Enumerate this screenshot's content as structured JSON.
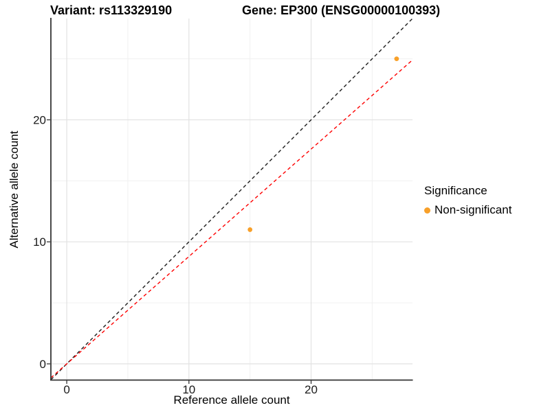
{
  "chart_data": {
    "type": "scatter",
    "titles": {
      "variant": "Variant: rs113329190",
      "gene": "Gene: EP300 (ENSG00000100393)"
    },
    "xlabel": "Reference allele count",
    "ylabel": "Alternative allele count",
    "xlim": [
      -1.3,
      28.3
    ],
    "ylim": [
      -1.3,
      28.3
    ],
    "x_major_ticks": [
      0,
      10,
      20
    ],
    "x_minor_ticks": [
      5,
      15,
      25
    ],
    "y_major_ticks": [
      0,
      10,
      20
    ],
    "y_minor_ticks": [
      5,
      15,
      25
    ],
    "grid": true,
    "points": [
      {
        "x": 15,
        "y": 11,
        "series": "Non-significant"
      },
      {
        "x": 27,
        "y": 25,
        "series": "Non-significant"
      }
    ],
    "lines": [
      {
        "name": "identity-line",
        "slope": 1.0,
        "intercept": 0,
        "color": "#1a1a1a",
        "style": "dashed"
      },
      {
        "name": "fitted-ratio-line",
        "slope": 0.88,
        "intercept": 0,
        "color": "#fe0000",
        "style": "dashed"
      }
    ],
    "legend": {
      "title": "Significance",
      "position": "right",
      "items": [
        {
          "label": "Non-significant",
          "color": "#f8a029"
        }
      ]
    },
    "colors": {
      "point": "#f8a029",
      "grid_major": "#e2e2e2",
      "grid_minor": "#f0f0f0",
      "axis_line": "#333333",
      "tick_label": "#1a1a1a"
    }
  }
}
